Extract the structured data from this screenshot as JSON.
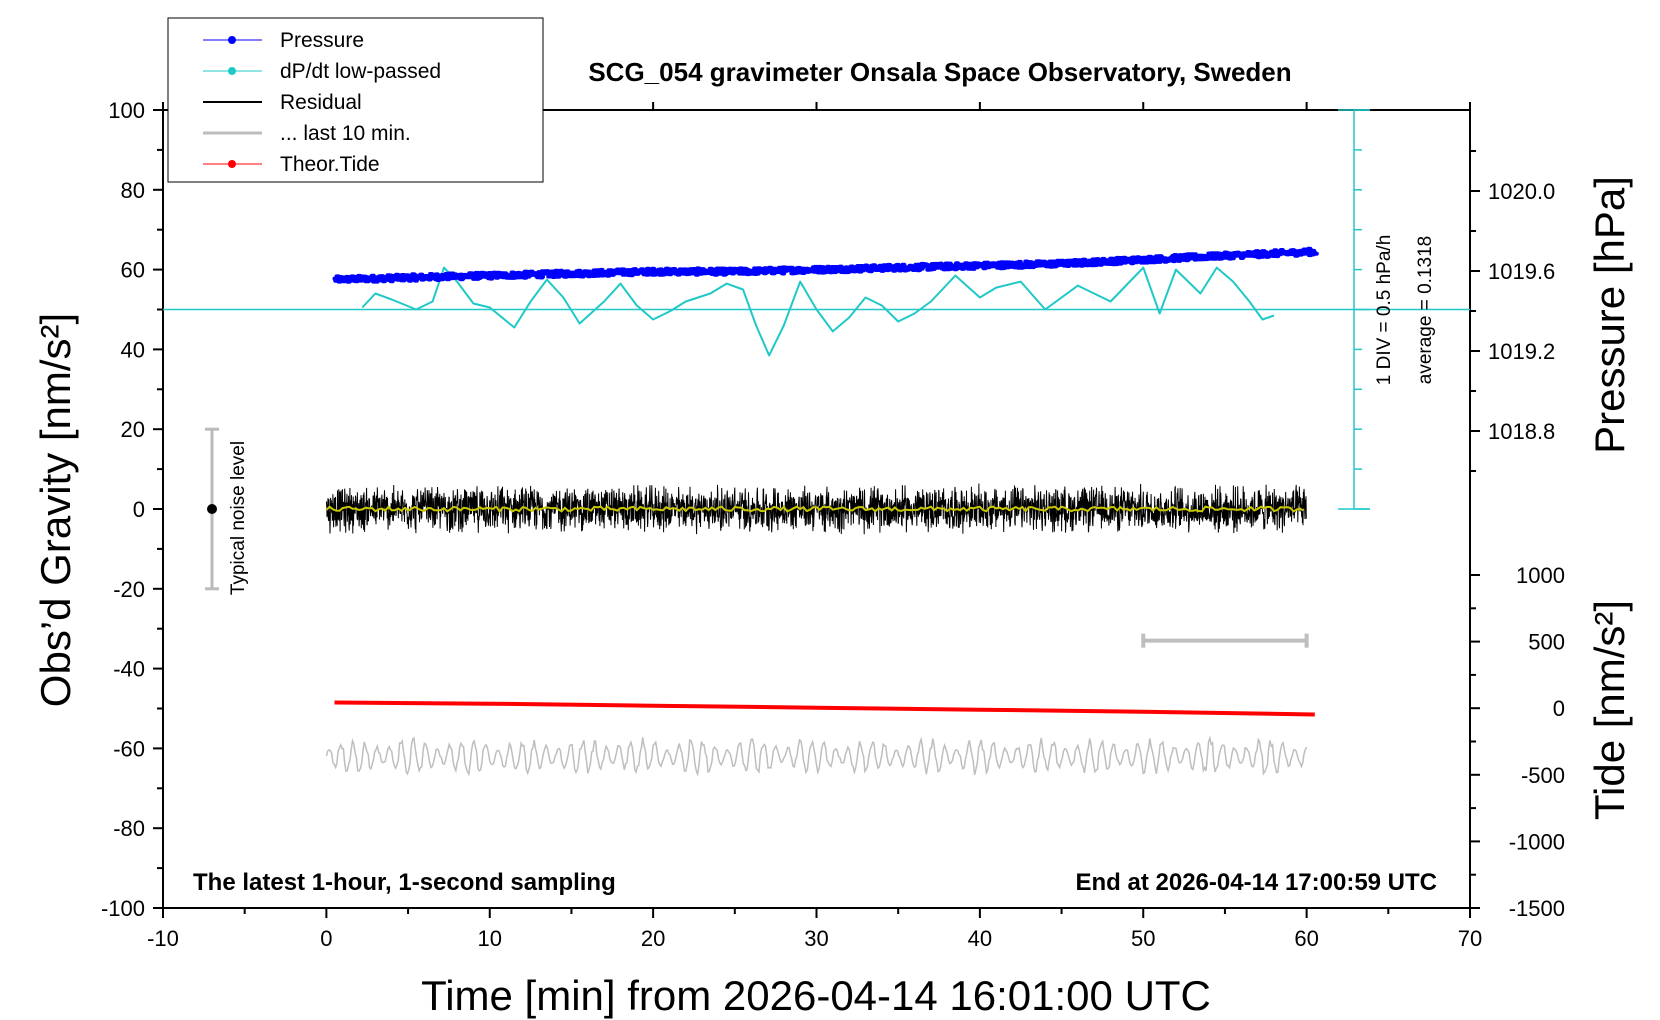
{
  "chart_data": {
    "type": "line",
    "title": "SCG_054 gravimeter Onsala Space Observatory, Sweden",
    "xlabel": "Time [min] from 2026-04-14 16:01:00 UTC",
    "ylabel_left": "Obs’d Gravity [nm/s²]",
    "ylabel_right_pressure": "Pressure [hPa]",
    "ylabel_right_tide": "Tide [nm/s²]",
    "xlim": [
      -10,
      70
    ],
    "ylim": [
      -100,
      100
    ],
    "xticks": [
      "-10",
      "0",
      "10",
      "20",
      "30",
      "40",
      "50",
      "60",
      "70"
    ],
    "yticks": [
      "-100",
      "-80",
      "-60",
      "-40",
      "-20",
      "0",
      "20",
      "40",
      "60",
      "80",
      "100"
    ],
    "pressure_ticks": [
      "1020.0",
      "1019.6",
      "1019.2",
      "1018.8"
    ],
    "pressure_tick_values": [
      1020.0,
      1019.6,
      1019.2,
      1018.8
    ],
    "tide_ticks": [
      "1000",
      "500",
      "0",
      "-500",
      "-1000",
      "-1500"
    ],
    "tide_tick_values": [
      1000,
      500,
      0,
      -500,
      -1000,
      -1500
    ],
    "footer_left": "The latest 1-hour, 1-second sampling",
    "footer_right": "End at 2026-04-14 17:00:59 UTC",
    "legend": {
      "placement": "top-left",
      "entries": [
        "Pressure",
        "dP/dt low-passed",
        "Residual",
        "... last 10 min.",
        "Theor.Tide"
      ]
    },
    "annotations": {
      "noise_label": "Typical noise level",
      "noise_range": [
        -20,
        20
      ],
      "noise_x": -7,
      "dpdt_scale": "1 DIV = 0.5 hPa/h",
      "dpdt_average": "average = 0.1318"
    },
    "colors": {
      "pressure": "#0000ff",
      "dpdt": "#20c8c8",
      "residual": "#000000",
      "residual_smooth": "#c8c800",
      "last10": "#bebebe",
      "tide": "#ff0000"
    },
    "series": [
      {
        "name": "Pressure",
        "x": [
          0.5,
          5,
          10,
          15,
          20,
          25,
          30,
          35,
          40,
          45,
          50,
          55,
          60.5
        ],
        "y": [
          57.5,
          58.0,
          58.5,
          59.0,
          59.5,
          59.5,
          60.0,
          60.5,
          61.0,
          61.5,
          62.5,
          63.5,
          64.5
        ]
      },
      {
        "name": "dP/dt low-passed",
        "baseline": 50,
        "x": [
          2.2,
          3,
          4,
          5.5,
          6.5,
          7.2,
          8,
          9,
          10,
          11.5,
          12.5,
          13.5,
          14.5,
          15.5,
          17,
          18,
          19,
          20,
          21,
          22,
          23.5,
          24.5,
          25.5,
          26.3,
          27.1,
          28,
          29,
          30,
          31,
          32,
          33,
          34,
          35,
          36,
          37,
          38.5,
          40,
          41,
          42.5,
          44,
          46,
          48,
          50,
          51,
          52,
          53.5,
          54.5,
          55.5,
          56.5,
          57.3,
          58
        ],
        "y": [
          50.5,
          54,
          52.5,
          50,
          52,
          60.5,
          57,
          51.5,
          50.5,
          45.5,
          52,
          57.5,
          53,
          46.5,
          52,
          56.5,
          51,
          47.5,
          49.5,
          52,
          54,
          56.5,
          55,
          46,
          38.5,
          46,
          57,
          50,
          44.5,
          48,
          53,
          51,
          47,
          49,
          52,
          58.5,
          53,
          55.5,
          57,
          50,
          56,
          52,
          60.5,
          49,
          60,
          54,
          60.5,
          57,
          52,
          47.5,
          48.5
        ]
      },
      {
        "name": "Residual",
        "x": [
          0,
          60
        ],
        "y": [
          0,
          0
        ],
        "amplitude": 5
      },
      {
        "name": "... last 10 min.",
        "x": [
          0,
          60
        ],
        "baseline": -62,
        "amplitude": 5
      },
      {
        "name": "Theor.Tide",
        "x": [
          0.5,
          10,
          20,
          30,
          40,
          50,
          60.5
        ],
        "y": [
          -48.5,
          -48.8,
          -49.3,
          -49.8,
          -50.3,
          -50.8,
          -51.5
        ]
      }
    ],
    "bracket": {
      "x": [
        50,
        60
      ],
      "y": -33
    }
  }
}
